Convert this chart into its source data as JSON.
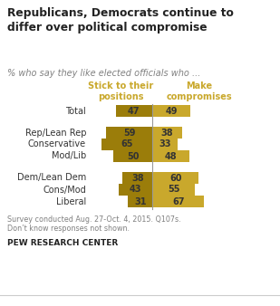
{
  "title": "Republicans, Democrats continue to\ndiffer over political compromise",
  "subtitle": "% who say they like elected officials who ...",
  "col1_header": "Stick to their\npositions",
  "col2_header": "Make\ncompromises",
  "categories": [
    "Total",
    "Rep/Lean Rep",
    "Conservative",
    "Mod/Lib",
    "Dem/Lean Dem",
    "Cons/Mod",
    "Liberal"
  ],
  "stick_values": [
    47,
    59,
    65,
    50,
    38,
    43,
    31
  ],
  "compromise_values": [
    49,
    38,
    33,
    48,
    60,
    55,
    67
  ],
  "bar_color_dark": "#9B7D0A",
  "bar_color_light": "#C9A82C",
  "header_color": "#C9A82C",
  "title_color": "#222222",
  "subtitle_color": "#808080",
  "footer_color": "#808080",
  "brand_color": "#222222",
  "background_color": "#FFFFFF",
  "footer_text": "Survey conducted Aug. 27-Oct. 4, 2015. Q107s.\nDon’t know responses not shown.",
  "footer_brand": "PEW RESEARCH CENTER"
}
